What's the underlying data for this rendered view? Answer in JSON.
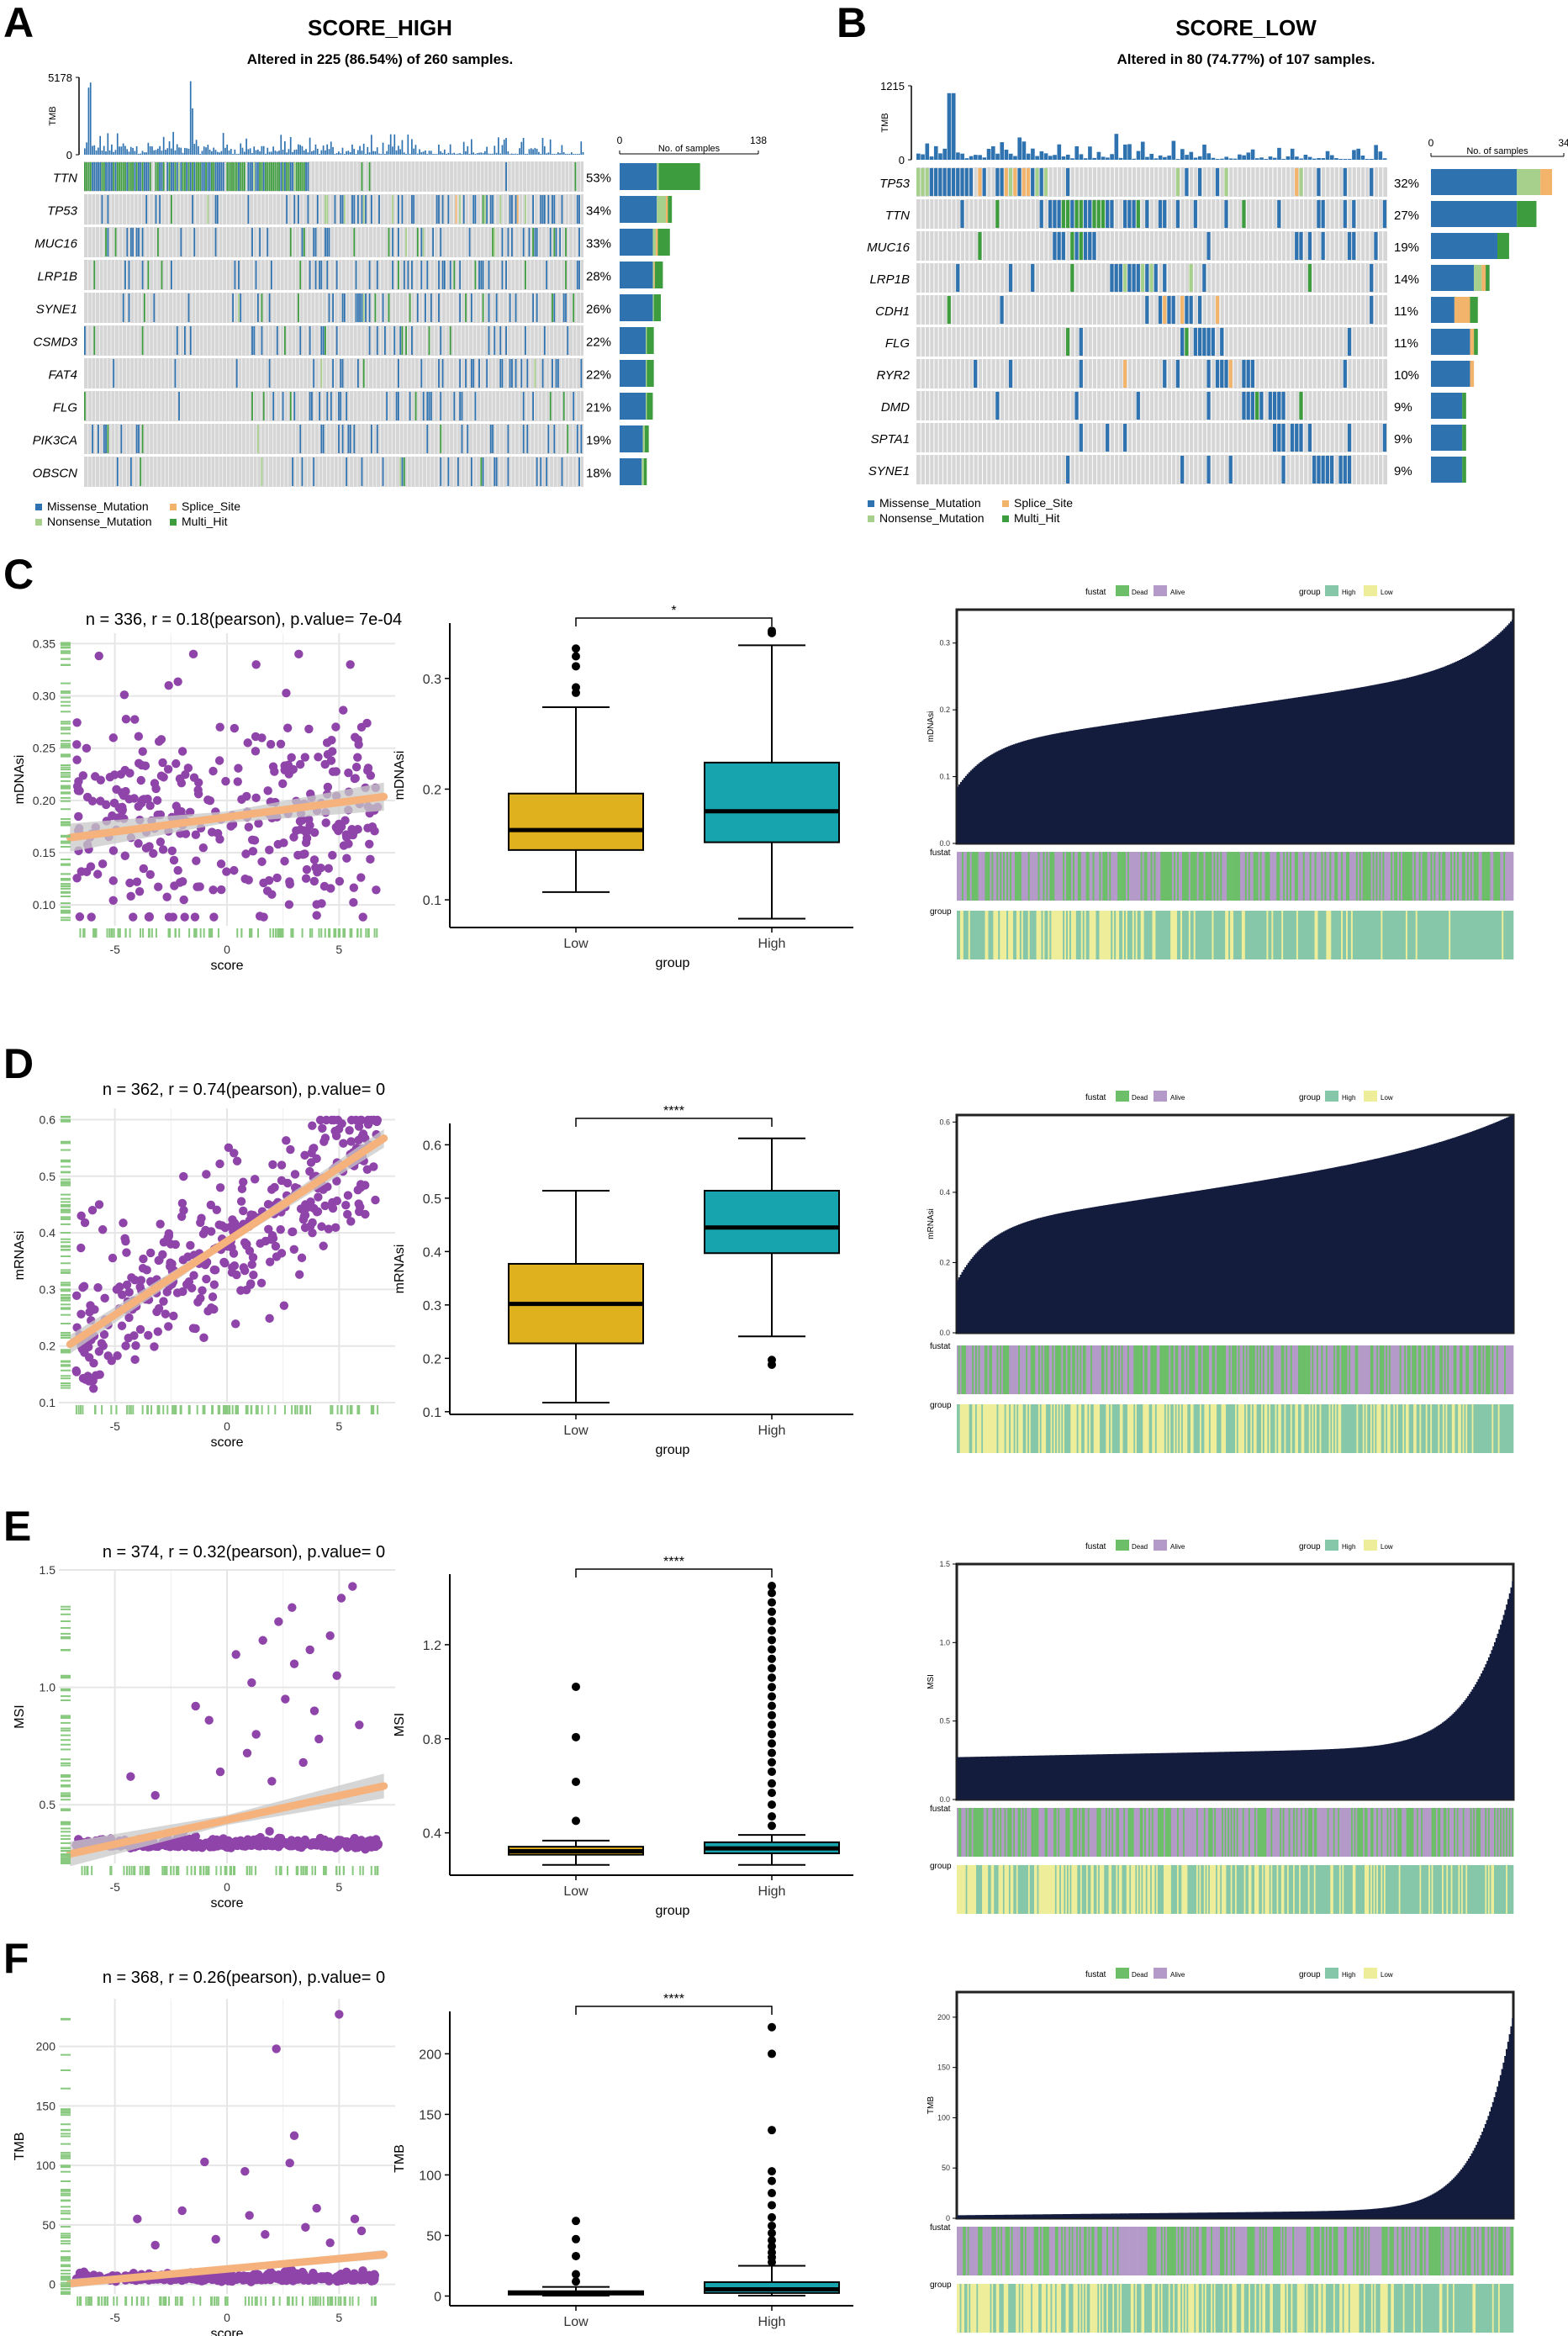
{
  "colors": {
    "missense": "#2f72b0",
    "nonsense": "#a8d08d",
    "splice": "#f2b36b",
    "multi_hit": "#3d9c3d",
    "bg_cell": "#d6d6d6",
    "scatter_point": "#8e44a9",
    "fit_line": "#f5b27c",
    "fit_band": "#c8c8c8",
    "rug": "#88c97f",
    "box_low": "#e0b11e",
    "box_high": "#17a4ae",
    "wf_fill": "#141c3d",
    "dead": "#6cbf68",
    "alive": "#b49ac8",
    "group_high": "#86c7a9",
    "group_low": "#eeee9a"
  },
  "panels": {
    "A": {
      "letter": "A",
      "title": "SCORE_HIGH",
      "subtitle": "Altered in 225 (86.54%) of 260 samples.",
      "tmb_label": "TMB",
      "tmb_max": "5178",
      "tmb_min": "0",
      "bar_axis_min": "0",
      "bar_axis_max": "138",
      "bar_axis_label": "No. of samples"
    },
    "B": {
      "letter": "B",
      "title": "SCORE_LOW",
      "subtitle": "Altered in 80 (74.77%) of 107 samples.",
      "tmb_label": "TMB",
      "tmb_max": "1215",
      "tmb_min": "0",
      "bar_axis_min": "0",
      "bar_axis_max": "34",
      "bar_axis_label": "No. of samples"
    },
    "C": {
      "letter": "C"
    },
    "D": {
      "letter": "D"
    },
    "E": {
      "letter": "E"
    },
    "F": {
      "letter": "F"
    }
  },
  "legend_mutation": {
    "missense": "Missense_Mutation",
    "splice": "Splice_Site",
    "nonsense": "Nonsense_Mutation",
    "multi_hit": "Multi_Hit"
  },
  "legend_waterfall": {
    "fustat_title": "fustat",
    "dead": "Dead",
    "alive": "Alive",
    "group_title": "group",
    "high": "High",
    "low": "Low"
  },
  "chart_data": [
    {
      "id": "A",
      "type": "oncoplot",
      "title": "SCORE_HIGH",
      "subtitle": "Altered in 225 (86.54%) of 260 samples.",
      "genes": [
        "TTN",
        "TP53",
        "MUC16",
        "LRP1B",
        "SYNE1",
        "CSMD3",
        "FAT4",
        "FLG",
        "PIK3CA",
        "OBSCN"
      ],
      "percents": [
        "53%",
        "34%",
        "33%",
        "28%",
        "26%",
        "22%",
        "22%",
        "21%",
        "19%",
        "18%"
      ],
      "bar_counts": [
        {
          "missense": 37,
          "nonsense": 2,
          "splice": 0,
          "multi_hit": 41
        },
        {
          "missense": 37,
          "nonsense": 9,
          "splice": 2,
          "multi_hit": 4
        },
        {
          "missense": 33,
          "nonsense": 3,
          "splice": 2,
          "multi_hit": 12
        },
        {
          "missense": 33,
          "nonsense": 1,
          "splice": 1,
          "multi_hit": 8
        },
        {
          "missense": 33,
          "nonsense": 1,
          "splice": 0,
          "multi_hit": 7
        },
        {
          "missense": 26,
          "nonsense": 1,
          "splice": 0,
          "multi_hit": 7
        },
        {
          "missense": 26,
          "nonsense": 1,
          "splice": 0,
          "multi_hit": 7
        },
        {
          "missense": 26,
          "nonsense": 1,
          "splice": 0,
          "multi_hit": 6
        },
        {
          "missense": 23,
          "nonsense": 2,
          "splice": 0,
          "multi_hit": 4
        },
        {
          "missense": 22,
          "nonsense": 2,
          "splice": 0,
          "multi_hit": 3
        }
      ],
      "bar_axis_max": 138,
      "tmb_axis_max": 5178
    },
    {
      "id": "B",
      "type": "oncoplot",
      "title": "SCORE_LOW",
      "subtitle": "Altered in 80 (74.77%) of 107 samples.",
      "genes": [
        "TP53",
        "TTN",
        "MUC16",
        "LRP1B",
        "CDH1",
        "FLG",
        "RYR2",
        "DMD",
        "SPTA1",
        "SYNE1"
      ],
      "percents": [
        "32%",
        "27%",
        "19%",
        "14%",
        "11%",
        "11%",
        "10%",
        "9%",
        "9%",
        "9%"
      ],
      "bar_counts": [
        {
          "missense": 22,
          "nonsense": 6,
          "splice": 3,
          "multi_hit": 0
        },
        {
          "missense": 22,
          "nonsense": 0,
          "splice": 0,
          "multi_hit": 5
        },
        {
          "missense": 17,
          "nonsense": 0,
          "splice": 0,
          "multi_hit": 3
        },
        {
          "missense": 11,
          "nonsense": 2,
          "splice": 1,
          "multi_hit": 1
        },
        {
          "missense": 6,
          "nonsense": 0,
          "splice": 4,
          "multi_hit": 2
        },
        {
          "missense": 10,
          "nonsense": 0,
          "splice": 1,
          "multi_hit": 1
        },
        {
          "missense": 10,
          "nonsense": 0,
          "splice": 1,
          "multi_hit": 0
        },
        {
          "missense": 8,
          "nonsense": 0,
          "splice": 0,
          "multi_hit": 1
        },
        {
          "missense": 8,
          "nonsense": 0,
          "splice": 0,
          "multi_hit": 1
        },
        {
          "missense": 8,
          "nonsense": 0,
          "splice": 0,
          "multi_hit": 1
        }
      ],
      "bar_axis_max": 34,
      "tmb_axis_max": 1215
    },
    {
      "id": "C",
      "metric": "mDNAsi",
      "scatter": {
        "type": "scatter",
        "title": "n = 336, r = 0.18(pearson), p.value= 7e-04",
        "xlabel": "score",
        "ylabel": "mDNAsi",
        "xlim": [
          -7.5,
          7.5
        ],
        "ylim": [
          0.08,
          0.36
        ],
        "xticks": [
          -5,
          0,
          5
        ],
        "yticks": [
          0.1,
          0.15,
          0.2,
          0.25,
          0.3,
          0.35
        ],
        "ytick_labels": [
          "0.10",
          "0.15",
          "0.20",
          "0.25",
          "0.30",
          "0.35"
        ],
        "n": 336,
        "r": 0.18,
        "y_center": 0.185,
        "y_sd": 0.045,
        "fit": [
          0.163,
          0.205
        ],
        "band": 0.009,
        "outliers": [
          [
            -1.5,
            0.34
          ],
          [
            3.2,
            0.34
          ],
          [
            1.3,
            0.33
          ],
          [
            5.5,
            0.33
          ],
          [
            -2.6,
            0.31
          ],
          [
            4.0,
            0.09
          ],
          [
            2.0,
            0.11
          ],
          [
            6.0,
            0.27
          ]
        ]
      },
      "box": {
        "type": "box",
        "title": "*",
        "xlabel": "group",
        "ylabel": "mDNAsi",
        "categories": [
          "Low",
          "High"
        ],
        "ylim": [
          0.075,
          0.35
        ],
        "yticks": [
          0.1,
          0.2,
          0.3
        ],
        "ytick_labels": [
          "0.1",
          "0.2",
          "0.3"
        ],
        "Low": {
          "min": 0.107,
          "q1": 0.145,
          "median": 0.163,
          "q3": 0.196,
          "max": 0.274,
          "outliers": [
            0.287,
            0.292,
            0.311,
            0.32,
            0.327
          ]
        },
        "High": {
          "min": 0.083,
          "q1": 0.152,
          "median": 0.18,
          "q3": 0.224,
          "max": 0.33,
          "outliers": [
            0.341,
            0.343
          ]
        }
      },
      "waterfall": {
        "type": "bar",
        "ylabel": "mDNAsi",
        "ylim": [
          0.0,
          0.35
        ],
        "yticks": [
          0.0,
          0.1,
          0.2,
          0.3
        ],
        "ytick_labels": [
          "0.0",
          "0.1",
          "0.2",
          "0.3"
        ],
        "n": 336,
        "start": 0.055,
        "curve": "lin",
        "base": 0.145,
        "linear": 0.12,
        "tail": 0.07,
        "tail_pow": 12,
        "drop_low": 0.06,
        "high_fraction": 0.55,
        "dead_fraction": 0.45
      }
    },
    {
      "id": "D",
      "metric": "mRNAsi",
      "scatter": {
        "type": "scatter",
        "title": "n = 362, r = 0.74(pearson), p.value= 0",
        "xlabel": "score",
        "ylabel": "mRNAsi",
        "xlim": [
          -7.5,
          7.5
        ],
        "ylim": [
          0.1,
          0.62
        ],
        "xticks": [
          -5,
          0,
          5
        ],
        "yticks": [
          0.1,
          0.2,
          0.3,
          0.4,
          0.5,
          0.6
        ],
        "ytick_labels": [
          "0.1",
          "0.2",
          "0.3",
          "0.4",
          "0.5",
          "0.6"
        ],
        "n": 362,
        "r": 0.74,
        "y_center": 0.385,
        "y_sd": 0.095,
        "fit": [
          0.19,
          0.58
        ],
        "band": 0.011,
        "outliers": [
          [
            -6.0,
            0.44
          ],
          [
            -5.7,
            0.45
          ],
          [
            -6.5,
            0.43
          ]
        ]
      },
      "box": {
        "type": "box",
        "title": "****",
        "xlabel": "group",
        "ylabel": "mRNAsi",
        "categories": [
          "Low",
          "High"
        ],
        "ylim": [
          0.095,
          0.64
        ],
        "yticks": [
          0.1,
          0.2,
          0.3,
          0.4,
          0.5,
          0.6
        ],
        "ytick_labels": [
          "0.1",
          "0.2",
          "0.3",
          "0.4",
          "0.5",
          "0.6"
        ],
        "Low": {
          "min": 0.117,
          "q1": 0.228,
          "median": 0.302,
          "q3": 0.377,
          "max": 0.514,
          "outliers": []
        },
        "High": {
          "min": 0.241,
          "q1": 0.397,
          "median": 0.445,
          "q3": 0.514,
          "max": 0.612,
          "outliers": [
            0.188,
            0.197
          ]
        }
      },
      "waterfall": {
        "type": "bar",
        "ylabel": "mRNAsi",
        "ylim": [
          0.0,
          0.62
        ],
        "yticks": [
          0.0,
          0.2,
          0.4,
          0.6
        ],
        "ytick_labels": [
          "0.0",
          "0.2",
          "0.4",
          "0.6"
        ],
        "n": 362,
        "start": 0.15,
        "curve": "lin",
        "base": 0.3,
        "linear": 0.24,
        "tail": 0.08,
        "tail_pow": 6,
        "drop_low": 0.15,
        "high_fraction": 0.55,
        "dead_fraction": 0.45
      }
    },
    {
      "id": "E",
      "metric": "MSI",
      "scatter": {
        "type": "scatter",
        "title": "n = 374, r = 0.32(pearson), p.value= 0",
        "xlabel": "score",
        "ylabel": "MSI",
        "xlim": [
          -7.5,
          7.5
        ],
        "ylim": [
          0.25,
          1.5
        ],
        "xticks": [
          -5,
          0,
          5
        ],
        "yticks": [
          0.5,
          1.0,
          1.5
        ],
        "ytick_labels": [
          "0.5",
          "1.0",
          "1.5"
        ],
        "n": 374,
        "r": 0.32,
        "y_center": 0.33,
        "y_sd": 0.025,
        "fit": [
          0.28,
          0.59
        ],
        "band": 0.035,
        "outliers": [
          [
            -4.3,
            0.62
          ],
          [
            -3.2,
            0.54
          ],
          [
            -1.4,
            0.92
          ],
          [
            -0.8,
            0.86
          ],
          [
            0.4,
            1.14
          ],
          [
            1.1,
            1.02
          ],
          [
            2.3,
            1.28
          ],
          [
            3.0,
            1.1
          ],
          [
            3.7,
            1.16
          ],
          [
            4.6,
            1.22
          ],
          [
            5.1,
            1.38
          ],
          [
            5.6,
            1.43
          ],
          [
            0.9,
            0.72
          ],
          [
            2.0,
            0.6
          ],
          [
            4.1,
            0.78
          ],
          [
            1.6,
            1.2
          ],
          [
            2.6,
            0.95
          ],
          [
            3.4,
            0.68
          ],
          [
            -0.3,
            0.64
          ],
          [
            5.9,
            0.84
          ],
          [
            4.9,
            1.05
          ],
          [
            3.9,
            0.9
          ],
          [
            2.9,
            1.34
          ],
          [
            1.3,
            0.8
          ]
        ]
      },
      "box": {
        "type": "box",
        "title": "****",
        "xlabel": "group",
        "ylabel": "MSI",
        "categories": [
          "Low",
          "High"
        ],
        "ylim": [
          0.22,
          1.5
        ],
        "yticks": [
          0.4,
          0.8,
          1.2
        ],
        "ytick_labels": [
          "0.4",
          "0.8",
          "1.2"
        ],
        "Low": {
          "min": 0.264,
          "q1": 0.307,
          "median": 0.322,
          "q3": 0.341,
          "max": 0.367,
          "outliers": [
            0.451,
            0.617,
            0.807,
            1.021
          ]
        },
        "High": {
          "min": 0.264,
          "q1": 0.313,
          "median": 0.334,
          "q3": 0.36,
          "max": 0.391,
          "outliers": [
            0.43,
            0.47,
            0.52,
            0.57,
            0.61,
            0.66,
            0.7,
            0.74,
            0.78,
            0.82,
            0.86,
            0.9,
            0.94,
            0.98,
            1.02,
            1.06,
            1.1,
            1.14,
            1.18,
            1.22,
            1.26,
            1.3,
            1.34,
            1.38,
            1.42,
            1.45
          ]
        }
      },
      "waterfall": {
        "type": "bar",
        "ylabel": "MSI",
        "ylim": [
          0.0,
          1.5
        ],
        "yticks": [
          0.0,
          0.5,
          1.0,
          1.5
        ],
        "ytick_labels": [
          "0.0",
          "0.5",
          "1.0",
          "1.5"
        ],
        "n": 374,
        "start": 0.265,
        "curve": "lin",
        "base": 0.27,
        "linear": 0.07,
        "tail": 1.05,
        "tail_pow": 14,
        "drop_low": 0.0,
        "high_fraction": 0.55,
        "dead_fraction": 0.4
      }
    },
    {
      "id": "F",
      "metric": "TMB",
      "scatter": {
        "type": "scatter",
        "title": "n = 368, r = 0.26(pearson), p.value= 0",
        "xlabel": "score",
        "ylabel": "TMB",
        "xlim": [
          -7.5,
          7.5
        ],
        "ylim": [
          -8,
          240
        ],
        "xticks": [
          -5,
          0,
          5
        ],
        "yticks": [
          0,
          50,
          100,
          150,
          200
        ],
        "ytick_labels": [
          "0",
          "50",
          "100",
          "150",
          "200"
        ],
        "n": 368,
        "r": 0.26,
        "y_center": 5,
        "y_sd": 4,
        "fit": [
          0,
          26
        ],
        "band": 2.5,
        "outliers": [
          [
            2.2,
            198
          ],
          [
            5.0,
            227
          ],
          [
            -1.0,
            103
          ],
          [
            3.0,
            125
          ],
          [
            0.8,
            95
          ],
          [
            4.0,
            64
          ],
          [
            -4.0,
            55
          ],
          [
            -2.0,
            62
          ],
          [
            2.8,
            102
          ],
          [
            1.7,
            42
          ],
          [
            5.7,
            55
          ],
          [
            3.5,
            48
          ],
          [
            -0.5,
            38
          ],
          [
            4.6,
            35
          ],
          [
            -3.2,
            33
          ],
          [
            1.0,
            58
          ],
          [
            6.0,
            45
          ]
        ]
      },
      "box": {
        "type": "box",
        "title": "****",
        "xlabel": "group",
        "ylabel": "TMB",
        "categories": [
          "Low",
          "High"
        ],
        "ylim": [
          -8,
          235
        ],
        "yticks": [
          0,
          50,
          100,
          150,
          200
        ],
        "ytick_labels": [
          "0",
          "50",
          "100",
          "150",
          "200"
        ],
        "Low": {
          "min": 0.3,
          "q1": 1.2,
          "median": 2.5,
          "q3": 4.0,
          "max": 7.5,
          "outliers": [
            12,
            18,
            33,
            47,
            62
          ]
        },
        "High": {
          "min": 0.3,
          "q1": 2.5,
          "median": 5.5,
          "q3": 11.5,
          "max": 25,
          "outliers": [
            28,
            32,
            36,
            41,
            46,
            52,
            58,
            65,
            75,
            85,
            95,
            103,
            137,
            200,
            222
          ]
        }
      },
      "waterfall": {
        "type": "bar",
        "ylabel": "TMB",
        "ylim": [
          0,
          225
        ],
        "yticks": [
          0,
          50,
          100,
          150,
          200
        ],
        "ytick_labels": [
          "0",
          "50",
          "100",
          "150",
          "200"
        ],
        "n": 368,
        "start": 2.5,
        "curve": "lin",
        "base": 3.0,
        "linear": 6.0,
        "tail": 190,
        "tail_pow": 16,
        "drop_low": 0.0,
        "high_fraction": 0.5,
        "dead_fraction": 0.45
      }
    }
  ]
}
